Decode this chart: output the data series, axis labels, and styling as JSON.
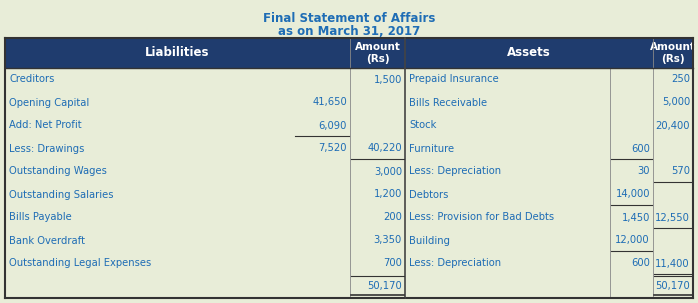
{
  "title1": "Final Statement of Affairs",
  "title2": "as on March 31, 2017",
  "header_bg": "#1F3C6E",
  "header_text": "#FFFFFF",
  "body_bg": "#E8EDD8",
  "cell_text": "#1E6DB5",
  "outer_bg": "#E8EDD8",
  "title_color": "#1E6DB5",
  "left_rows": [
    {
      "label": "Creditors",
      "sub": "",
      "amount": "1,500"
    },
    {
      "label": "Opening Capital",
      "sub": "41,650",
      "amount": ""
    },
    {
      "label": "Add: Net Profit",
      "sub": "6,090",
      "amount": ""
    },
    {
      "label": "Less: Drawings",
      "sub": "7,520",
      "amount": "40,220"
    },
    {
      "label": "Outstanding Wages",
      "sub": "",
      "amount": "3,000"
    },
    {
      "label": "Outstanding Salaries",
      "sub": "",
      "amount": "1,200"
    },
    {
      "label": "Bills Payable",
      "sub": "",
      "amount": "200"
    },
    {
      "label": "Bank Overdraft",
      "sub": "",
      "amount": "3,350"
    },
    {
      "label": "Outstanding Legal Expenses",
      "sub": "",
      "amount": "700"
    },
    {
      "label": "",
      "sub": "",
      "amount": "50,170"
    }
  ],
  "right_rows": [
    {
      "label": "Prepaid Insurance",
      "sub": "",
      "amount": "250"
    },
    {
      "label": "Bills Receivable",
      "sub": "",
      "amount": "5,000"
    },
    {
      "label": "Stock",
      "sub": "",
      "amount": "20,400"
    },
    {
      "label": "Furniture",
      "sub": "600",
      "amount": ""
    },
    {
      "label": "Less: Depreciation",
      "sub": "30",
      "amount": "570"
    },
    {
      "label": "Debtors",
      "sub": "14,000",
      "amount": ""
    },
    {
      "label": "Less: Provision for Bad Debts",
      "sub": "1,450",
      "amount": "12,550"
    },
    {
      "label": "Building",
      "sub": "12,000",
      "amount": ""
    },
    {
      "label": "Less: Depreciation",
      "sub": "600",
      "amount": "11,400"
    },
    {
      "label": "",
      "sub": "",
      "amount": "50,170"
    }
  ]
}
